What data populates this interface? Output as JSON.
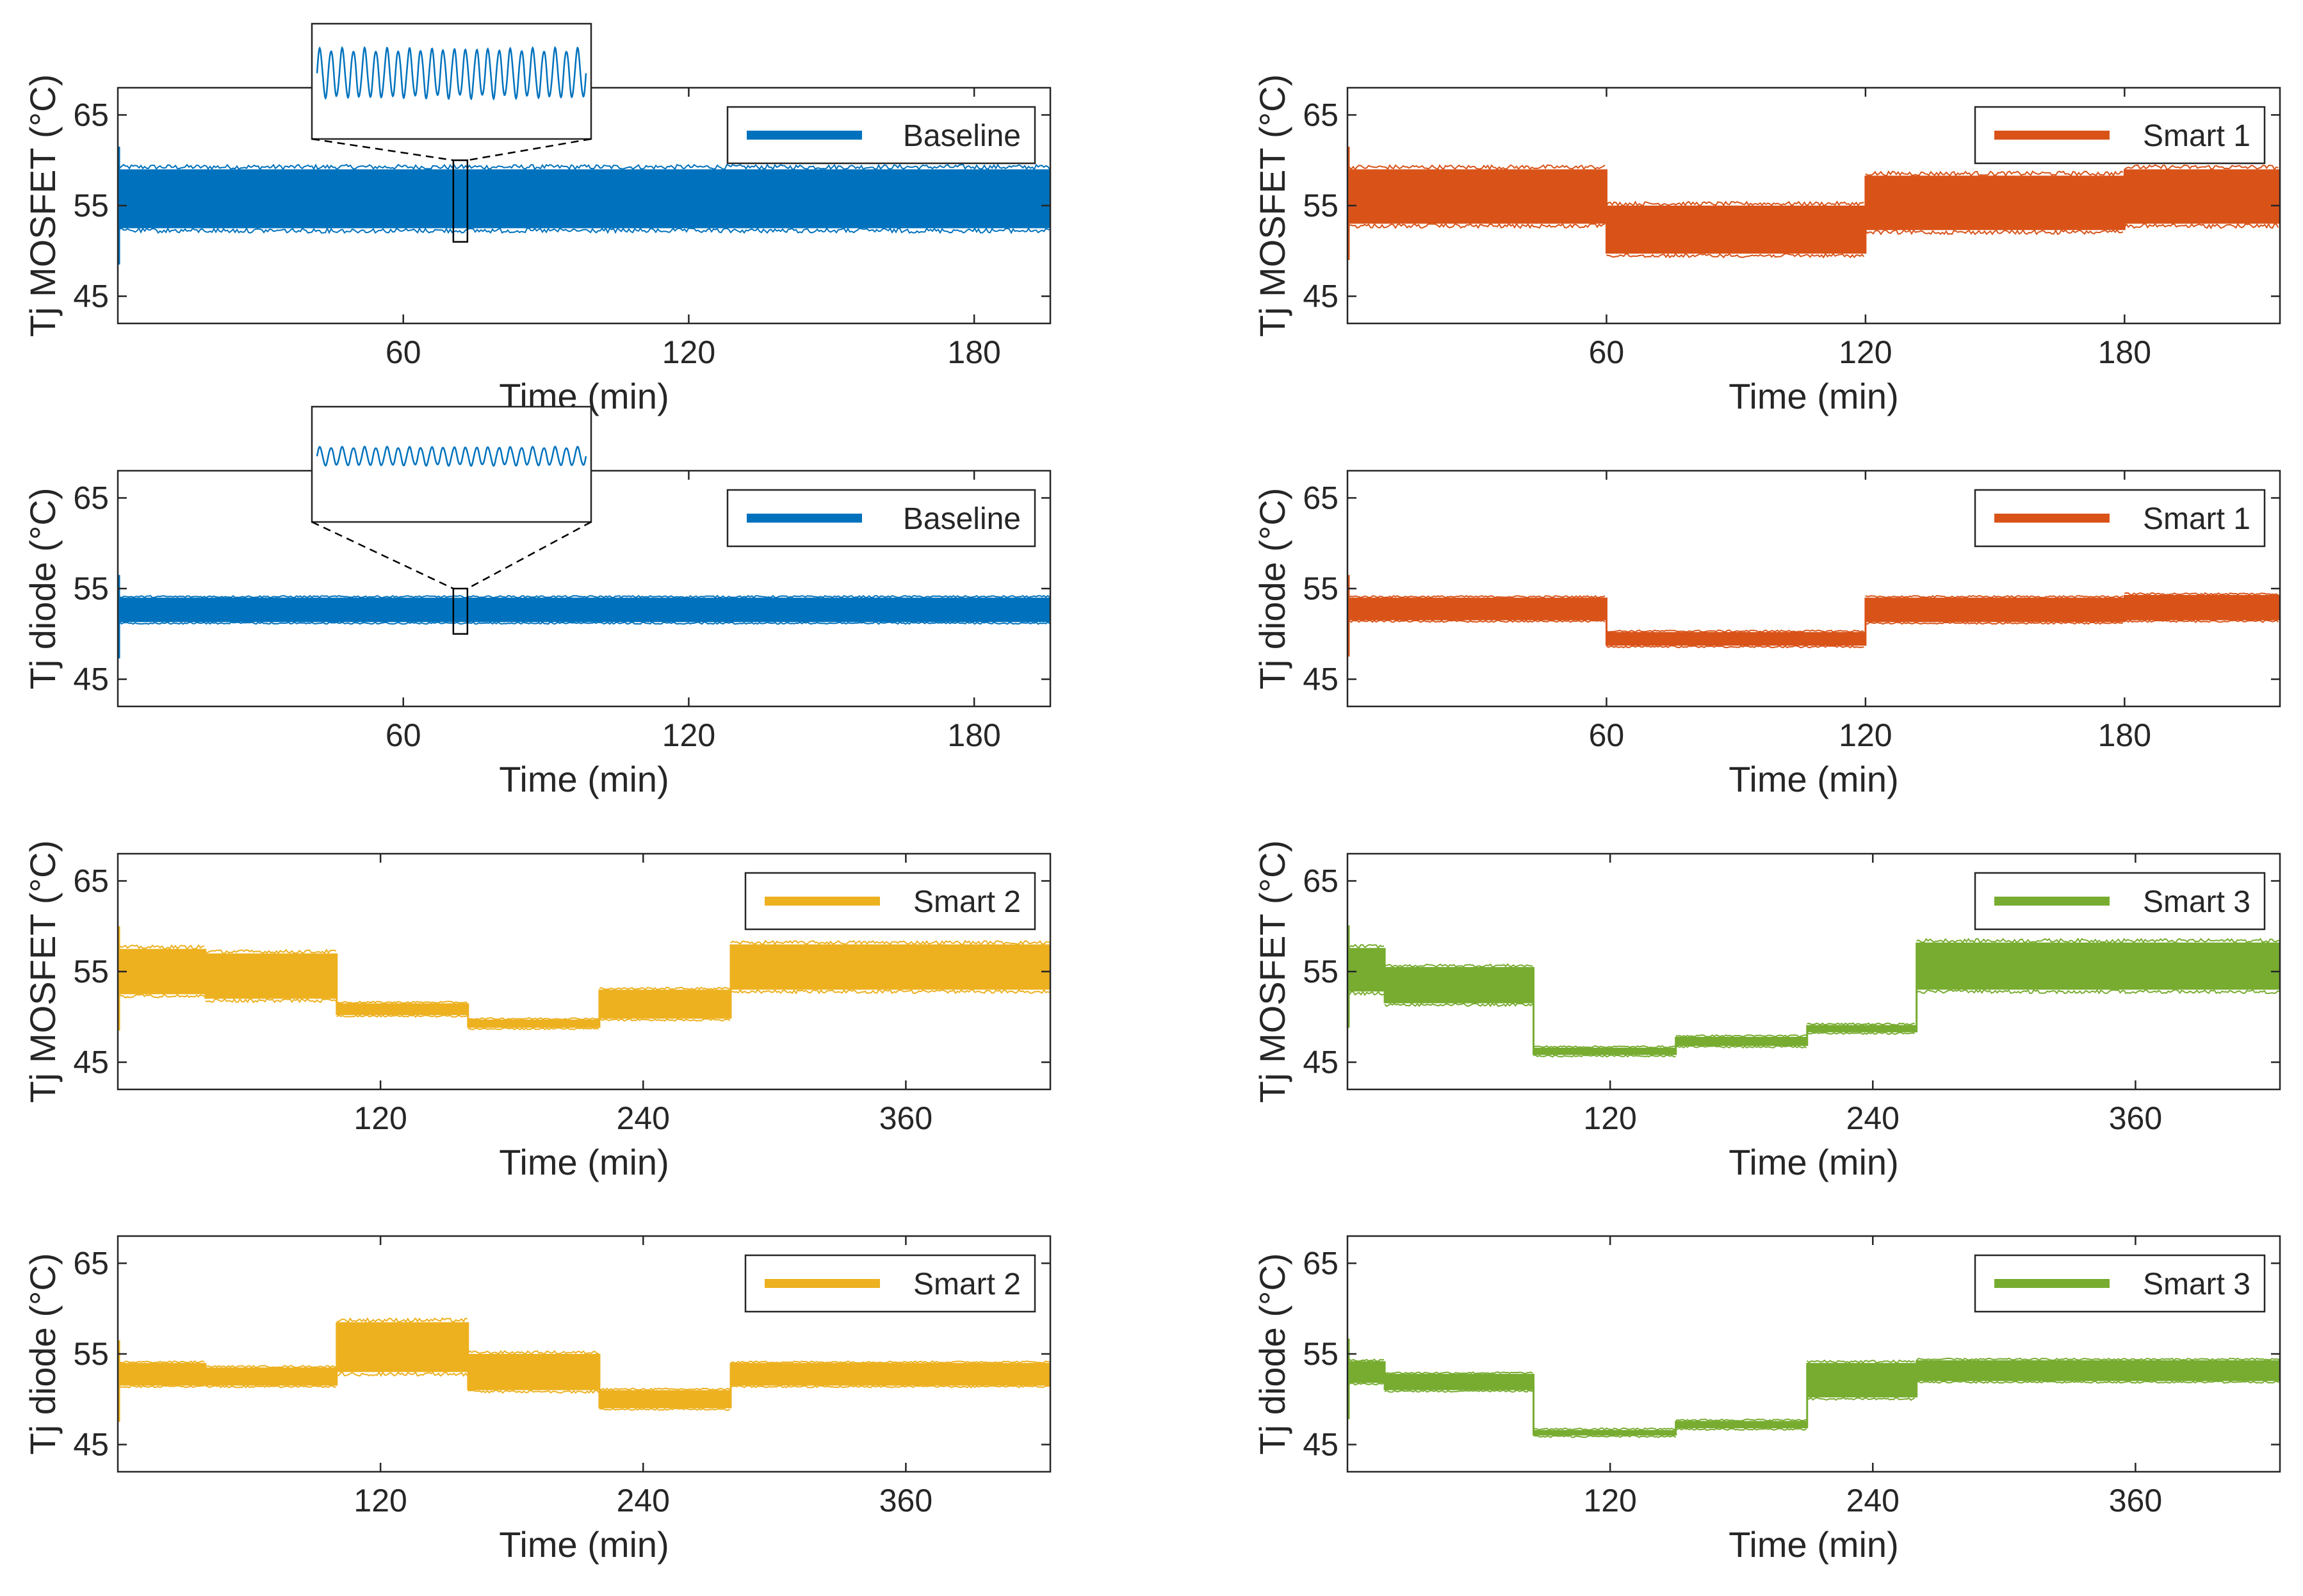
{
  "colors": {
    "baseline": "#0072BD",
    "smart1": "#D95319",
    "smart2": "#EDB120",
    "smart3": "#77AC30",
    "axis": "#262626"
  },
  "chart_data": [
    {
      "id": "p1",
      "type": "line",
      "ylabel": "Tj MOSFET (°C)",
      "xlabel": "Time (min)",
      "xlim": [
        0,
        196
      ],
      "ylim": [
        42,
        68
      ],
      "xticks": [
        60,
        120,
        180
      ],
      "yticks": [
        45,
        55,
        65
      ],
      "legend": "Baseline",
      "color_key": "baseline",
      "legend_position": "top-right",
      "segments": [
        {
          "start": 0,
          "end": 196,
          "low": 52.5,
          "high": 59
        }
      ],
      "inset": {
        "zoom_x": 72,
        "zoom_ylim": [
          51,
          60
        ]
      }
    },
    {
      "id": "p2",
      "type": "line",
      "ylabel": "Tj MOSFET (°C)",
      "xlabel": "Time (min)",
      "xlim": [
        0,
        216
      ],
      "ylim": [
        42,
        68
      ],
      "xticks": [
        60,
        120,
        180
      ],
      "yticks": [
        45,
        55,
        65
      ],
      "legend": "Smart 1",
      "color_key": "smart1",
      "legend_position": "top-right",
      "segments": [
        {
          "start": 0,
          "end": 60,
          "low": 53,
          "high": 59
        },
        {
          "start": 60,
          "end": 120,
          "low": 49.7,
          "high": 55
        },
        {
          "start": 120,
          "end": 180,
          "low": 52.3,
          "high": 58.3
        },
        {
          "start": 180,
          "end": 216,
          "low": 53,
          "high": 59
        }
      ]
    },
    {
      "id": "p3",
      "type": "line",
      "ylabel": "Tj diode (°C)",
      "xlabel": "Time (min)",
      "xlim": [
        0,
        196
      ],
      "ylim": [
        42,
        68
      ],
      "xticks": [
        60,
        120,
        180
      ],
      "yticks": [
        45,
        55,
        65
      ],
      "legend": "Baseline",
      "color_key": "baseline",
      "legend_position": "top-right",
      "segments": [
        {
          "start": 0,
          "end": 196,
          "low": 51.3,
          "high": 54
        }
      ],
      "inset": {
        "zoom_x": 72,
        "zoom_ylim": [
          50,
          55
        ]
      }
    },
    {
      "id": "p4",
      "type": "line",
      "ylabel": "Tj diode (°C)",
      "xlabel": "Time (min)",
      "xlim": [
        0,
        216
      ],
      "ylim": [
        42,
        68
      ],
      "xticks": [
        60,
        120,
        180
      ],
      "yticks": [
        45,
        55,
        65
      ],
      "legend": "Smart 1",
      "color_key": "smart1",
      "legend_position": "top-right",
      "segments": [
        {
          "start": 0,
          "end": 60,
          "low": 51.5,
          "high": 54
        },
        {
          "start": 60,
          "end": 120,
          "low": 48.7,
          "high": 50.2
        },
        {
          "start": 120,
          "end": 180,
          "low": 51.3,
          "high": 54
        },
        {
          "start": 180,
          "end": 216,
          "low": 51.5,
          "high": 54.3
        }
      ]
    },
    {
      "id": "p5",
      "type": "line",
      "ylabel": "Tj MOSFET (°C)",
      "xlabel": "Time (min)",
      "xlim": [
        0,
        426
      ],
      "ylim": [
        42,
        68
      ],
      "xticks": [
        120,
        240,
        360
      ],
      "yticks": [
        45,
        55,
        65
      ],
      "legend": "Smart 2",
      "color_key": "smart2",
      "legend_position": "top-right",
      "segments": [
        {
          "start": 0,
          "end": 40,
          "low": 52.5,
          "high": 57.5
        },
        {
          "start": 40,
          "end": 100,
          "low": 52,
          "high": 57
        },
        {
          "start": 100,
          "end": 160,
          "low": 50.2,
          "high": 51.5
        },
        {
          "start": 160,
          "end": 220,
          "low": 48.8,
          "high": 49.7
        },
        {
          "start": 220,
          "end": 280,
          "low": 49.8,
          "high": 53
        },
        {
          "start": 280,
          "end": 426,
          "low": 53,
          "high": 58
        }
      ]
    },
    {
      "id": "p6",
      "type": "line",
      "ylabel": "Tj MOSFET (°C)",
      "xlabel": "Time (min)",
      "xlim": [
        0,
        426
      ],
      "ylim": [
        42,
        68
      ],
      "xticks": [
        120,
        240,
        360
      ],
      "yticks": [
        45,
        55,
        65
      ],
      "legend": "Smart 3",
      "color_key": "smart3",
      "legend_position": "top-right",
      "segments": [
        {
          "start": 0,
          "end": 17,
          "low": 52.8,
          "high": 57.6
        },
        {
          "start": 17,
          "end": 85,
          "low": 51.5,
          "high": 55.5
        },
        {
          "start": 85,
          "end": 150,
          "low": 45.8,
          "high": 46.6
        },
        {
          "start": 150,
          "end": 210,
          "low": 46.8,
          "high": 47.8
        },
        {
          "start": 210,
          "end": 260,
          "low": 48.3,
          "high": 49.1
        },
        {
          "start": 260,
          "end": 426,
          "low": 53,
          "high": 58.2
        }
      ]
    },
    {
      "id": "p7",
      "type": "line",
      "ylabel": "Tj diode (°C)",
      "xlabel": "Time (min)",
      "xlim": [
        0,
        426
      ],
      "ylim": [
        42,
        68
      ],
      "xticks": [
        120,
        240,
        360
      ],
      "yticks": [
        45,
        55,
        65
      ],
      "legend": "Smart 2",
      "color_key": "smart2",
      "legend_position": "top-right",
      "segments": [
        {
          "start": 0,
          "end": 40,
          "low": 51.5,
          "high": 54
        },
        {
          "start": 40,
          "end": 100,
          "low": 51.5,
          "high": 53.5
        },
        {
          "start": 100,
          "end": 160,
          "low": 53,
          "high": 58.5
        },
        {
          "start": 160,
          "end": 220,
          "low": 51,
          "high": 55
        },
        {
          "start": 220,
          "end": 280,
          "low": 49,
          "high": 51
        },
        {
          "start": 280,
          "end": 426,
          "low": 51.5,
          "high": 54
        }
      ]
    },
    {
      "id": "p8",
      "type": "line",
      "ylabel": "Tj diode (°C)",
      "xlabel": "Time (min)",
      "xlim": [
        0,
        426
      ],
      "ylim": [
        42,
        68
      ],
      "xticks": [
        120,
        240,
        360
      ],
      "yticks": [
        45,
        55,
        65
      ],
      "legend": "Smart 3",
      "color_key": "smart3",
      "legend_position": "top-right",
      "segments": [
        {
          "start": 0,
          "end": 17,
          "low": 51.8,
          "high": 54.2
        },
        {
          "start": 17,
          "end": 85,
          "low": 51,
          "high": 52.8
        },
        {
          "start": 85,
          "end": 150,
          "low": 46,
          "high": 46.6
        },
        {
          "start": 150,
          "end": 210,
          "low": 46.8,
          "high": 47.6
        },
        {
          "start": 210,
          "end": 260,
          "low": 50.2,
          "high": 54
        },
        {
          "start": 260,
          "end": 426,
          "low": 52,
          "high": 54.3
        }
      ]
    }
  ]
}
